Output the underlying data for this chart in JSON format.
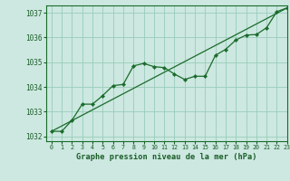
{
  "title": "Graphe pression niveau de la mer (hPa)",
  "bg_color": "#cce8e0",
  "line_color": "#1a6b2a",
  "grid_color": "#99ccbb",
  "text_color": "#1a5c28",
  "xlim": [
    -0.5,
    23
  ],
  "ylim": [
    1031.8,
    1037.3
  ],
  "yticks": [
    1032,
    1033,
    1034,
    1035,
    1036,
    1037
  ],
  "xticks": [
    0,
    1,
    2,
    3,
    4,
    5,
    6,
    7,
    8,
    9,
    10,
    11,
    12,
    13,
    14,
    15,
    16,
    17,
    18,
    19,
    20,
    21,
    22,
    23
  ],
  "data_x": [
    0,
    1,
    2,
    3,
    4,
    5,
    6,
    7,
    8,
    9,
    10,
    11,
    12,
    13,
    14,
    15,
    16,
    17,
    18,
    19,
    20,
    21,
    22,
    23
  ],
  "data_y": [
    1032.2,
    1032.2,
    1032.65,
    1033.3,
    1033.3,
    1033.65,
    1034.05,
    1034.1,
    1034.85,
    1034.95,
    1034.82,
    1034.78,
    1034.52,
    1034.3,
    1034.43,
    1034.43,
    1035.28,
    1035.52,
    1035.9,
    1036.1,
    1036.12,
    1036.4,
    1037.05,
    1037.2
  ],
  "trend_x": [
    0,
    23
  ],
  "trend_y": [
    1032.2,
    1037.2
  ]
}
